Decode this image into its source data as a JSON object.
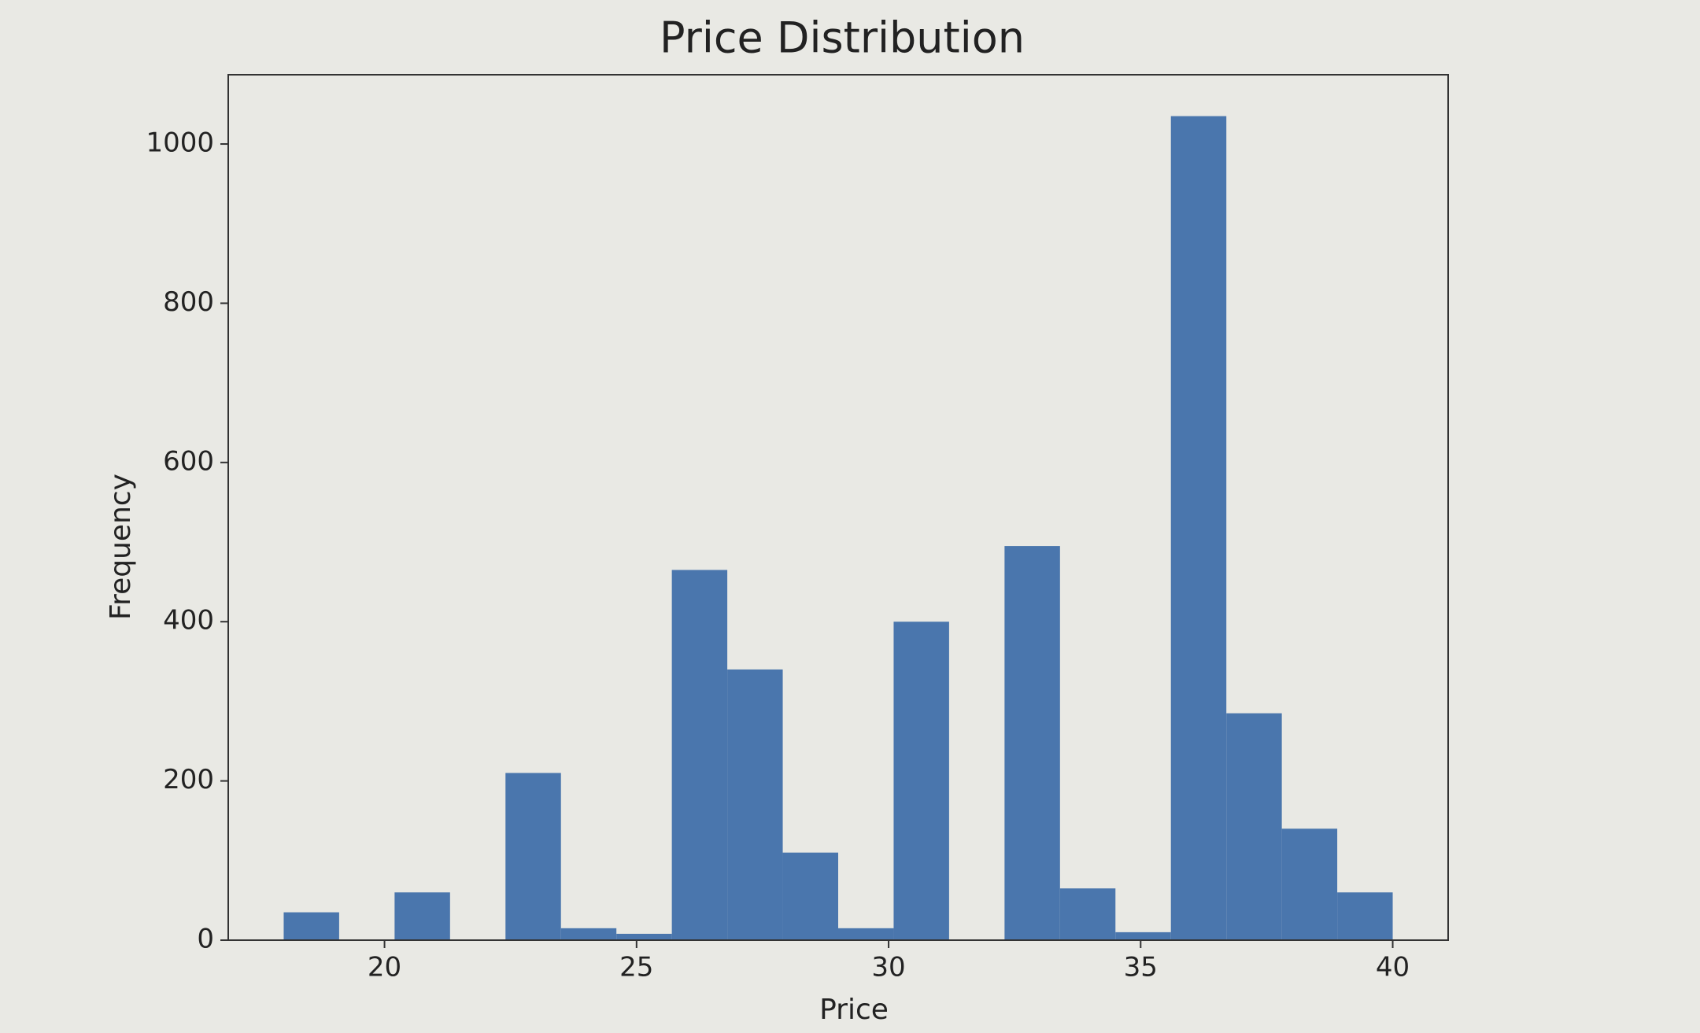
{
  "chart_data": {
    "type": "histogram",
    "title": "Price Distribution",
    "x_label": "Price",
    "y_label": "Frequency",
    "bins": [
      18,
      19.1,
      20.2,
      21.3,
      22.4,
      23.5,
      24.6,
      25.7,
      26.8,
      27.9,
      29.0,
      30.1,
      31.2,
      32.3,
      33.4,
      34.5,
      35.6,
      36.7,
      37.8,
      38.9,
      40
    ],
    "values": [
      35,
      0,
      60,
      0,
      210,
      15,
      8,
      465,
      340,
      110,
      15,
      400,
      0,
      495,
      65,
      10,
      1035,
      285,
      140,
      60
    ],
    "color": "#4a76ad",
    "xlim": [
      16.9,
      41.1
    ],
    "ylim": [
      0,
      1087
    ],
    "xticks": [
      20,
      25,
      30,
      35,
      40
    ],
    "yticks": [
      0,
      200,
      400,
      600,
      800,
      1000
    ]
  }
}
